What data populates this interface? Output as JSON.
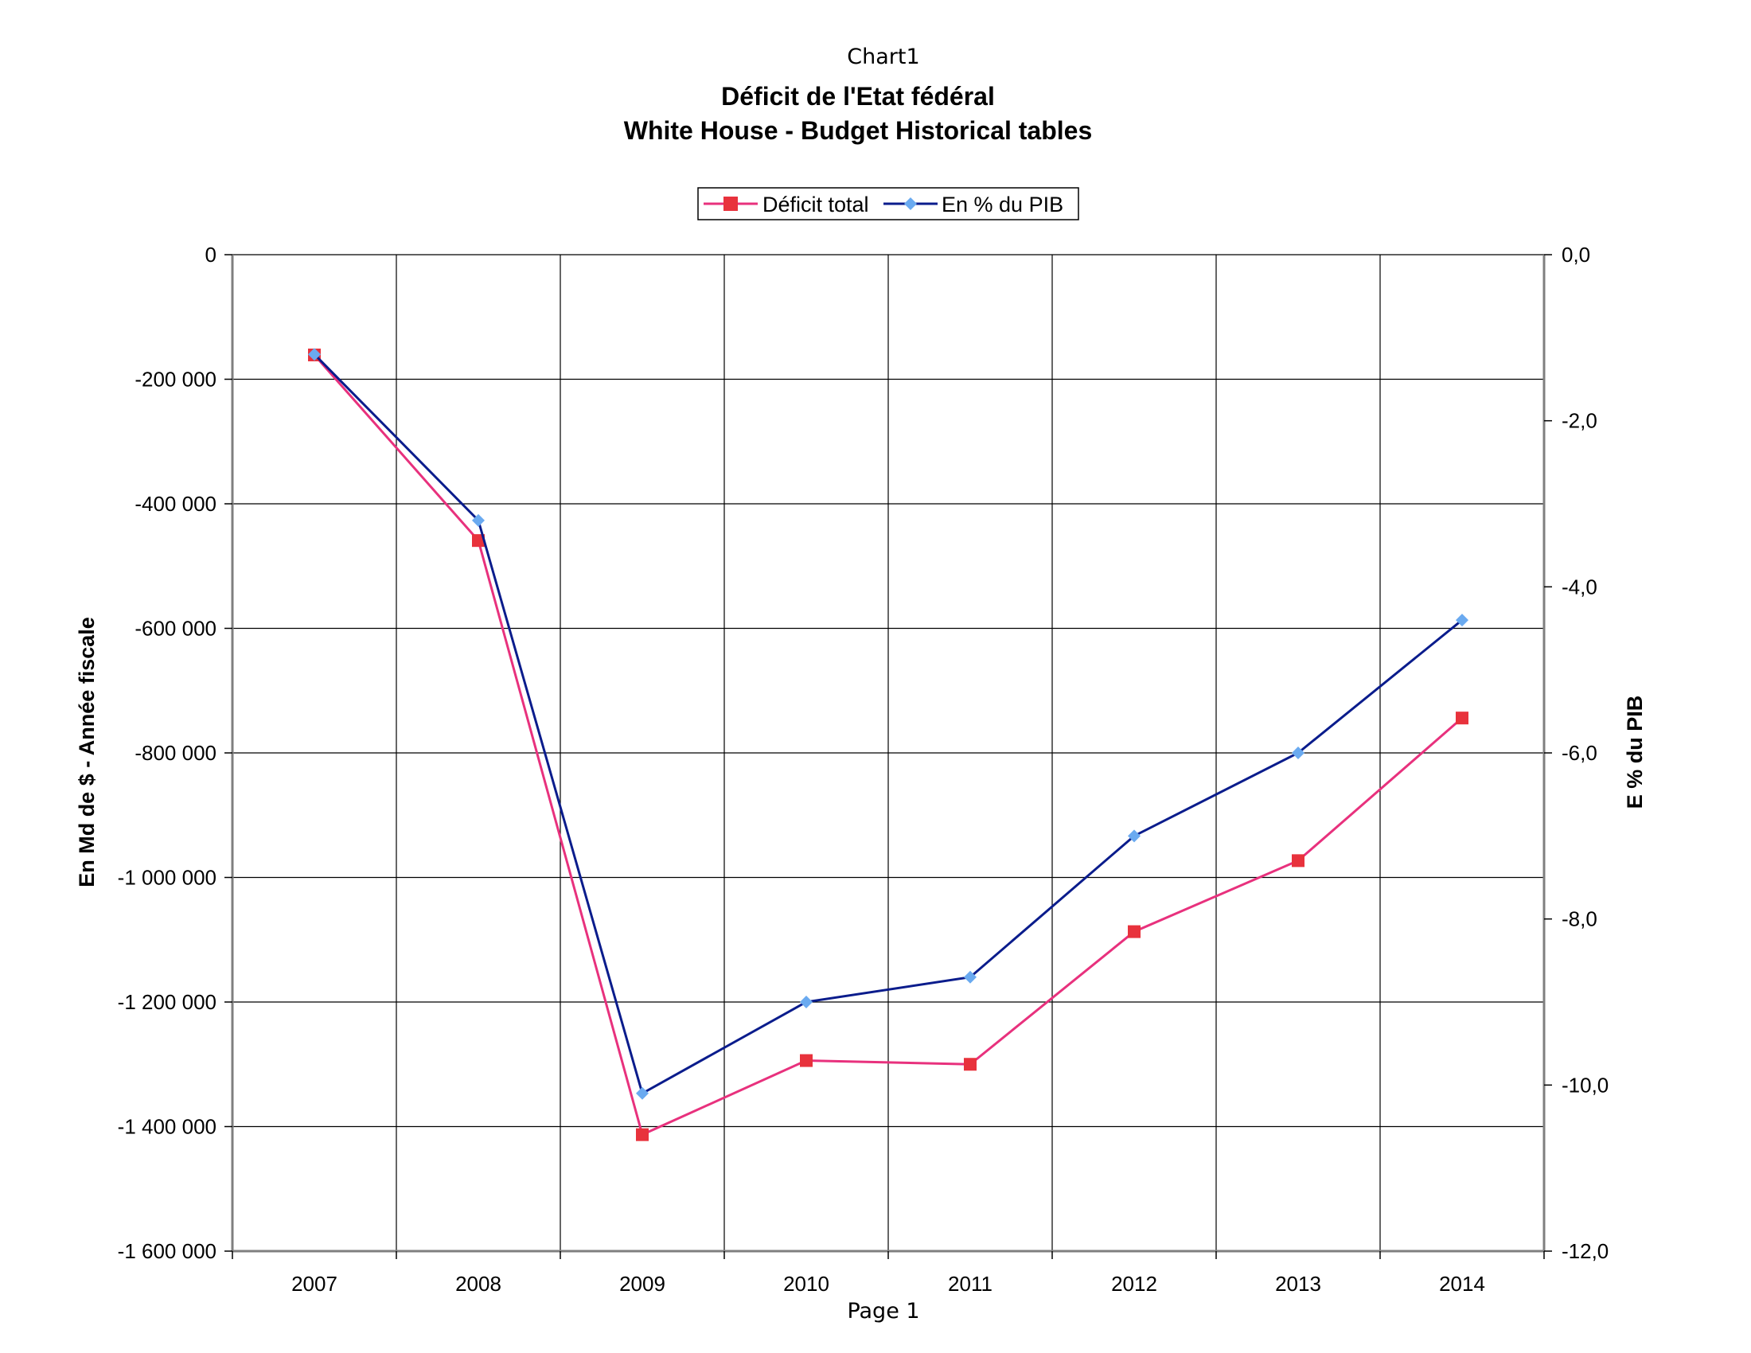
{
  "page": {
    "sheet_label": "Chart1",
    "footer": "Page 1"
  },
  "chart_data": {
    "type": "line",
    "title": "Déficit de l'Etat fédéral",
    "subtitle": "White House - Budget Historical tables",
    "categories": [
      "2007",
      "2008",
      "2009",
      "2010",
      "2011",
      "2012",
      "2013",
      "2014"
    ],
    "ylabel": "En Md de $ - Année fiscale",
    "y2label": "E % du PIB",
    "ylim": [
      -1600000,
      0
    ],
    "y2lim": [
      -12,
      0
    ],
    "yticks": [
      0,
      -200000,
      -400000,
      -600000,
      -800000,
      -1000000,
      -1200000,
      -1400000,
      -1600000
    ],
    "yticklabels": [
      "0",
      "-200 000",
      "-400 000",
      "-600 000",
      "-800 000",
      "-1 000 000",
      "-1 200 000",
      "-1 400 000",
      "-1 600 000"
    ],
    "y2ticks": [
      0,
      -2,
      -4,
      -6,
      -8,
      -10,
      -12
    ],
    "y2ticklabels": [
      "0,0",
      "-2,0",
      "-4,0",
      "-6,0",
      "-8,0",
      "-10,0",
      "-12,0"
    ],
    "grid": true,
    "legend_position": "top-center",
    "series": [
      {
        "name": "Déficit total",
        "axis": "left",
        "color": "#e8317d",
        "marker": "square",
        "marker_color": "#e8323c",
        "values": [
          -161000,
          -459000,
          -1413000,
          -1294000,
          -1300000,
          -1087000,
          -973000,
          -744000
        ]
      },
      {
        "name": "En % du PIB",
        "axis": "right",
        "color": "#0a1c8c",
        "marker": "diamond",
        "marker_color": "#6aaaf0",
        "values": [
          -1.2,
          -3.2,
          -10.1,
          -9.0,
          -8.7,
          -7.0,
          -6.0,
          -4.4
        ]
      }
    ]
  }
}
